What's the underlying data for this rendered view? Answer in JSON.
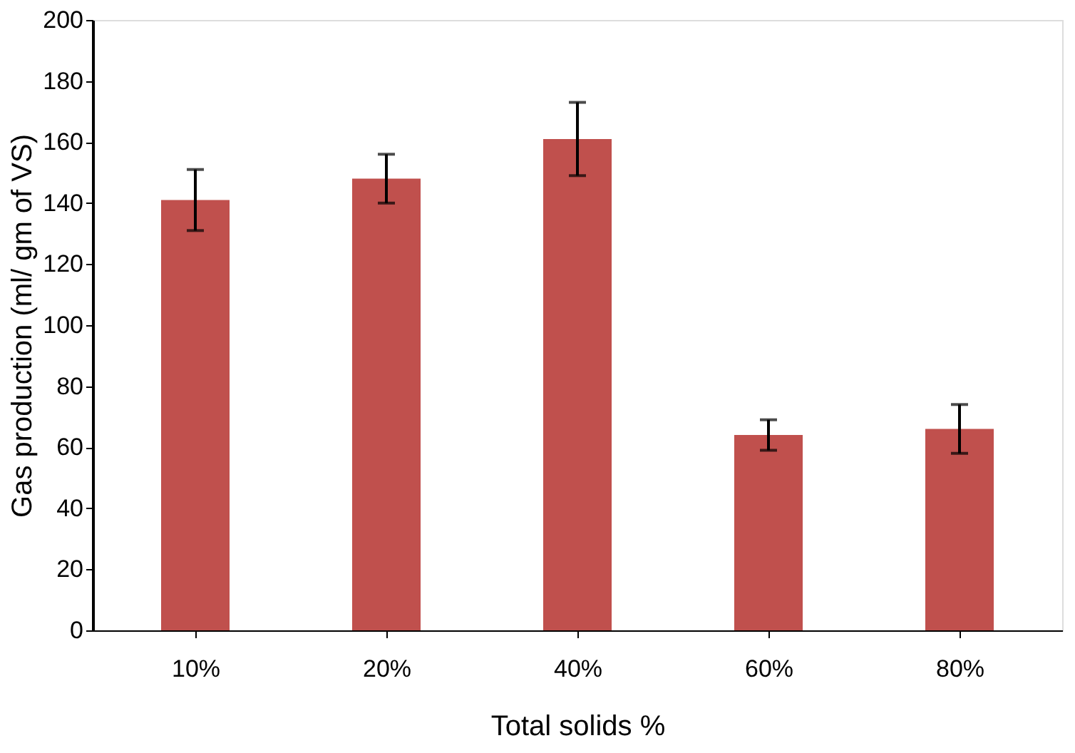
{
  "chart_data": {
    "type": "bar",
    "xlabel": "Total solids %",
    "ylabel": "Gas production (ml/ gm of VS)",
    "categories": [
      "10%",
      "20%",
      "40%",
      "60%",
      "80%"
    ],
    "values": [
      141,
      148,
      161,
      64,
      66
    ],
    "errors": [
      10,
      8,
      12,
      5,
      8
    ],
    "color": "#c0504d",
    "ylim": [
      0,
      200
    ],
    "yticks": [
      0,
      20,
      40,
      60,
      80,
      100,
      120,
      140,
      160,
      180,
      200
    ],
    "grid": false
  }
}
